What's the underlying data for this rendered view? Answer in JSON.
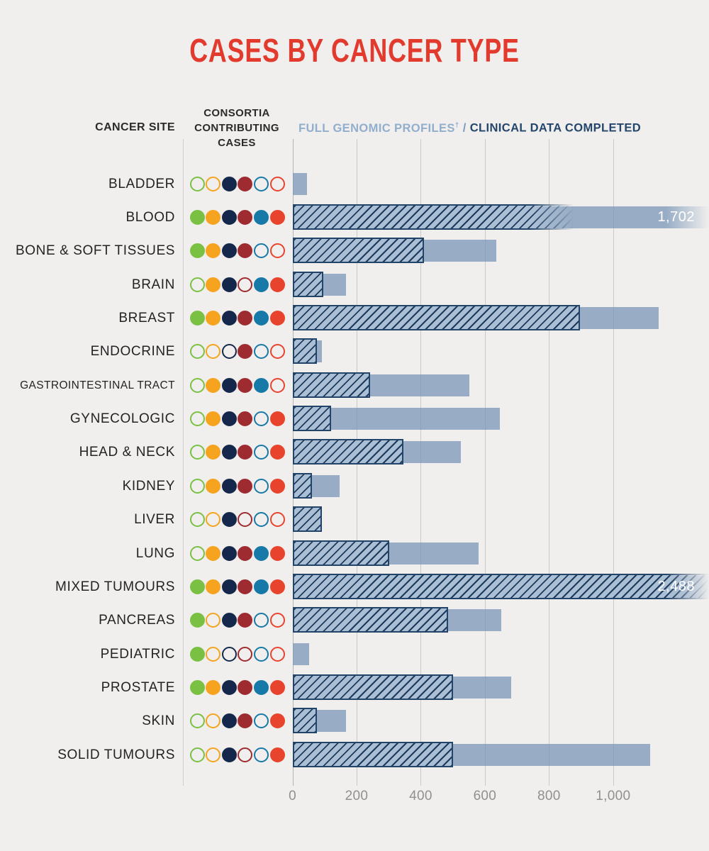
{
  "title": "CASES BY CANCER TYPE",
  "header": {
    "cancer_site": "CANCER SITE",
    "consortia_lines": [
      "CONSORTIA",
      "CONTRIBUTING",
      "CASES"
    ],
    "full_genomic": "FULL GENOMIC PROFILES",
    "dagger": "†",
    "separator": " / ",
    "clinical": "CLINICAL DATA COMPLETED"
  },
  "colors": {
    "background": "#f0efee",
    "title_red": "#e23b2e",
    "bar_solid": "#9db3cb",
    "bar_hatch_fill": "#abbfd4",
    "bar_hatch_line": "#1c3a5e",
    "bar_hatch_border": "#234569",
    "grid_line": "#c9c9c9",
    "zero_line": "#b3b3b3",
    "axis_text": "#909090",
    "label_text": "#262223",
    "header_light_blue": "#92aecd",
    "header_dark_blue": "#24466b",
    "value_label_text": "#ffffff",
    "consortia_dot_colors": [
      "#7ac143",
      "#f6a41f",
      "#15284b",
      "#9e2b2f",
      "#1679a7",
      "#e8442d"
    ]
  },
  "chart_data": {
    "type": "bar",
    "orientation": "horizontal",
    "title": "CASES BY CANCER TYPE",
    "xlabel": "",
    "ylabel": "CANCER SITE",
    "x_tick_labels": [
      "0",
      "200",
      "400",
      "600",
      "800",
      "1,000"
    ],
    "x_tick_values": [
      0,
      200,
      400,
      600,
      800,
      1000
    ],
    "x_visible_max": 1300,
    "grid": true,
    "series_legend": [
      {
        "name": "FULL GENOMIC PROFILES",
        "style": "solid-light-blue"
      },
      {
        "name": "CLINICAL DATA COMPLETED",
        "style": "hatched"
      }
    ],
    "dot_legend_note": "6 consortia dots per row; filled = contributing, outline = not contributing",
    "rows": [
      {
        "label": "BLADDER",
        "dots": [
          0,
          0,
          1,
          1,
          0,
          0
        ],
        "full_genomic_profiles": 45,
        "clinical_data_completed": 0,
        "value_label": null,
        "clipped": false
      },
      {
        "label": "BLOOD",
        "dots": [
          1,
          1,
          1,
          1,
          1,
          1
        ],
        "full_genomic_profiles": 1702,
        "clinical_data_completed": 875,
        "value_label": "1,702",
        "clipped": true
      },
      {
        "label": "BONE & SOFT TISSUES",
        "dots": [
          1,
          1,
          1,
          1,
          0,
          0
        ],
        "full_genomic_profiles": 635,
        "clinical_data_completed": 410,
        "value_label": null,
        "clipped": false
      },
      {
        "label": "BRAIN",
        "dots": [
          0,
          1,
          1,
          0,
          1,
          1
        ],
        "full_genomic_profiles": 165,
        "clinical_data_completed": 95,
        "value_label": null,
        "clipped": false
      },
      {
        "label": "BREAST",
        "dots": [
          1,
          1,
          1,
          1,
          1,
          1
        ],
        "full_genomic_profiles": 1140,
        "clinical_data_completed": 895,
        "value_label": null,
        "clipped": false
      },
      {
        "label": "ENDOCRINE",
        "dots": [
          0,
          0,
          0,
          1,
          0,
          0
        ],
        "full_genomic_profiles": 90,
        "clinical_data_completed": 75,
        "value_label": null,
        "clipped": false
      },
      {
        "label": "GASTROINTESTINAL TRACT",
        "dots": [
          0,
          1,
          1,
          1,
          1,
          0
        ],
        "full_genomic_profiles": 550,
        "clinical_data_completed": 240,
        "value_label": null,
        "clipped": false
      },
      {
        "label": "GYNECOLOGIC",
        "dots": [
          0,
          1,
          1,
          1,
          0,
          1
        ],
        "full_genomic_profiles": 645,
        "clinical_data_completed": 120,
        "value_label": null,
        "clipped": false
      },
      {
        "label": "HEAD & NECK",
        "dots": [
          0,
          1,
          1,
          1,
          0,
          1
        ],
        "full_genomic_profiles": 525,
        "clinical_data_completed": 345,
        "value_label": null,
        "clipped": false
      },
      {
        "label": "KIDNEY",
        "dots": [
          0,
          1,
          1,
          1,
          0,
          1
        ],
        "full_genomic_profiles": 145,
        "clinical_data_completed": 60,
        "value_label": null,
        "clipped": false
      },
      {
        "label": "LIVER",
        "dots": [
          0,
          0,
          1,
          0,
          0,
          0
        ],
        "full_genomic_profiles": 90,
        "clinical_data_completed": 90,
        "value_label": null,
        "clipped": false
      },
      {
        "label": "LUNG",
        "dots": [
          0,
          1,
          1,
          1,
          1,
          1
        ],
        "full_genomic_profiles": 580,
        "clinical_data_completed": 300,
        "value_label": null,
        "clipped": false
      },
      {
        "label": "MIXED TUMOURS",
        "dots": [
          1,
          1,
          1,
          1,
          1,
          1
        ],
        "full_genomic_profiles": 2488,
        "clinical_data_completed": 2488,
        "value_label": "2,488",
        "clipped": true
      },
      {
        "label": "PANCREAS",
        "dots": [
          1,
          0,
          1,
          1,
          0,
          0
        ],
        "full_genomic_profiles": 650,
        "clinical_data_completed": 485,
        "value_label": null,
        "clipped": false
      },
      {
        "label": "PEDIATRIC",
        "dots": [
          1,
          0,
          0,
          0,
          0,
          0
        ],
        "full_genomic_profiles": 50,
        "clinical_data_completed": 0,
        "value_label": null,
        "clipped": false
      },
      {
        "label": "PROSTATE",
        "dots": [
          1,
          1,
          1,
          1,
          1,
          1
        ],
        "full_genomic_profiles": 680,
        "clinical_data_completed": 500,
        "value_label": null,
        "clipped": false
      },
      {
        "label": "SKIN",
        "dots": [
          0,
          0,
          1,
          1,
          0,
          1
        ],
        "full_genomic_profiles": 165,
        "clinical_data_completed": 75,
        "value_label": null,
        "clipped": false
      },
      {
        "label": "SOLID TUMOURS",
        "dots": [
          0,
          0,
          1,
          0,
          0,
          1
        ],
        "full_genomic_profiles": 1115,
        "clinical_data_completed": 500,
        "value_label": null,
        "clipped": false
      }
    ]
  }
}
